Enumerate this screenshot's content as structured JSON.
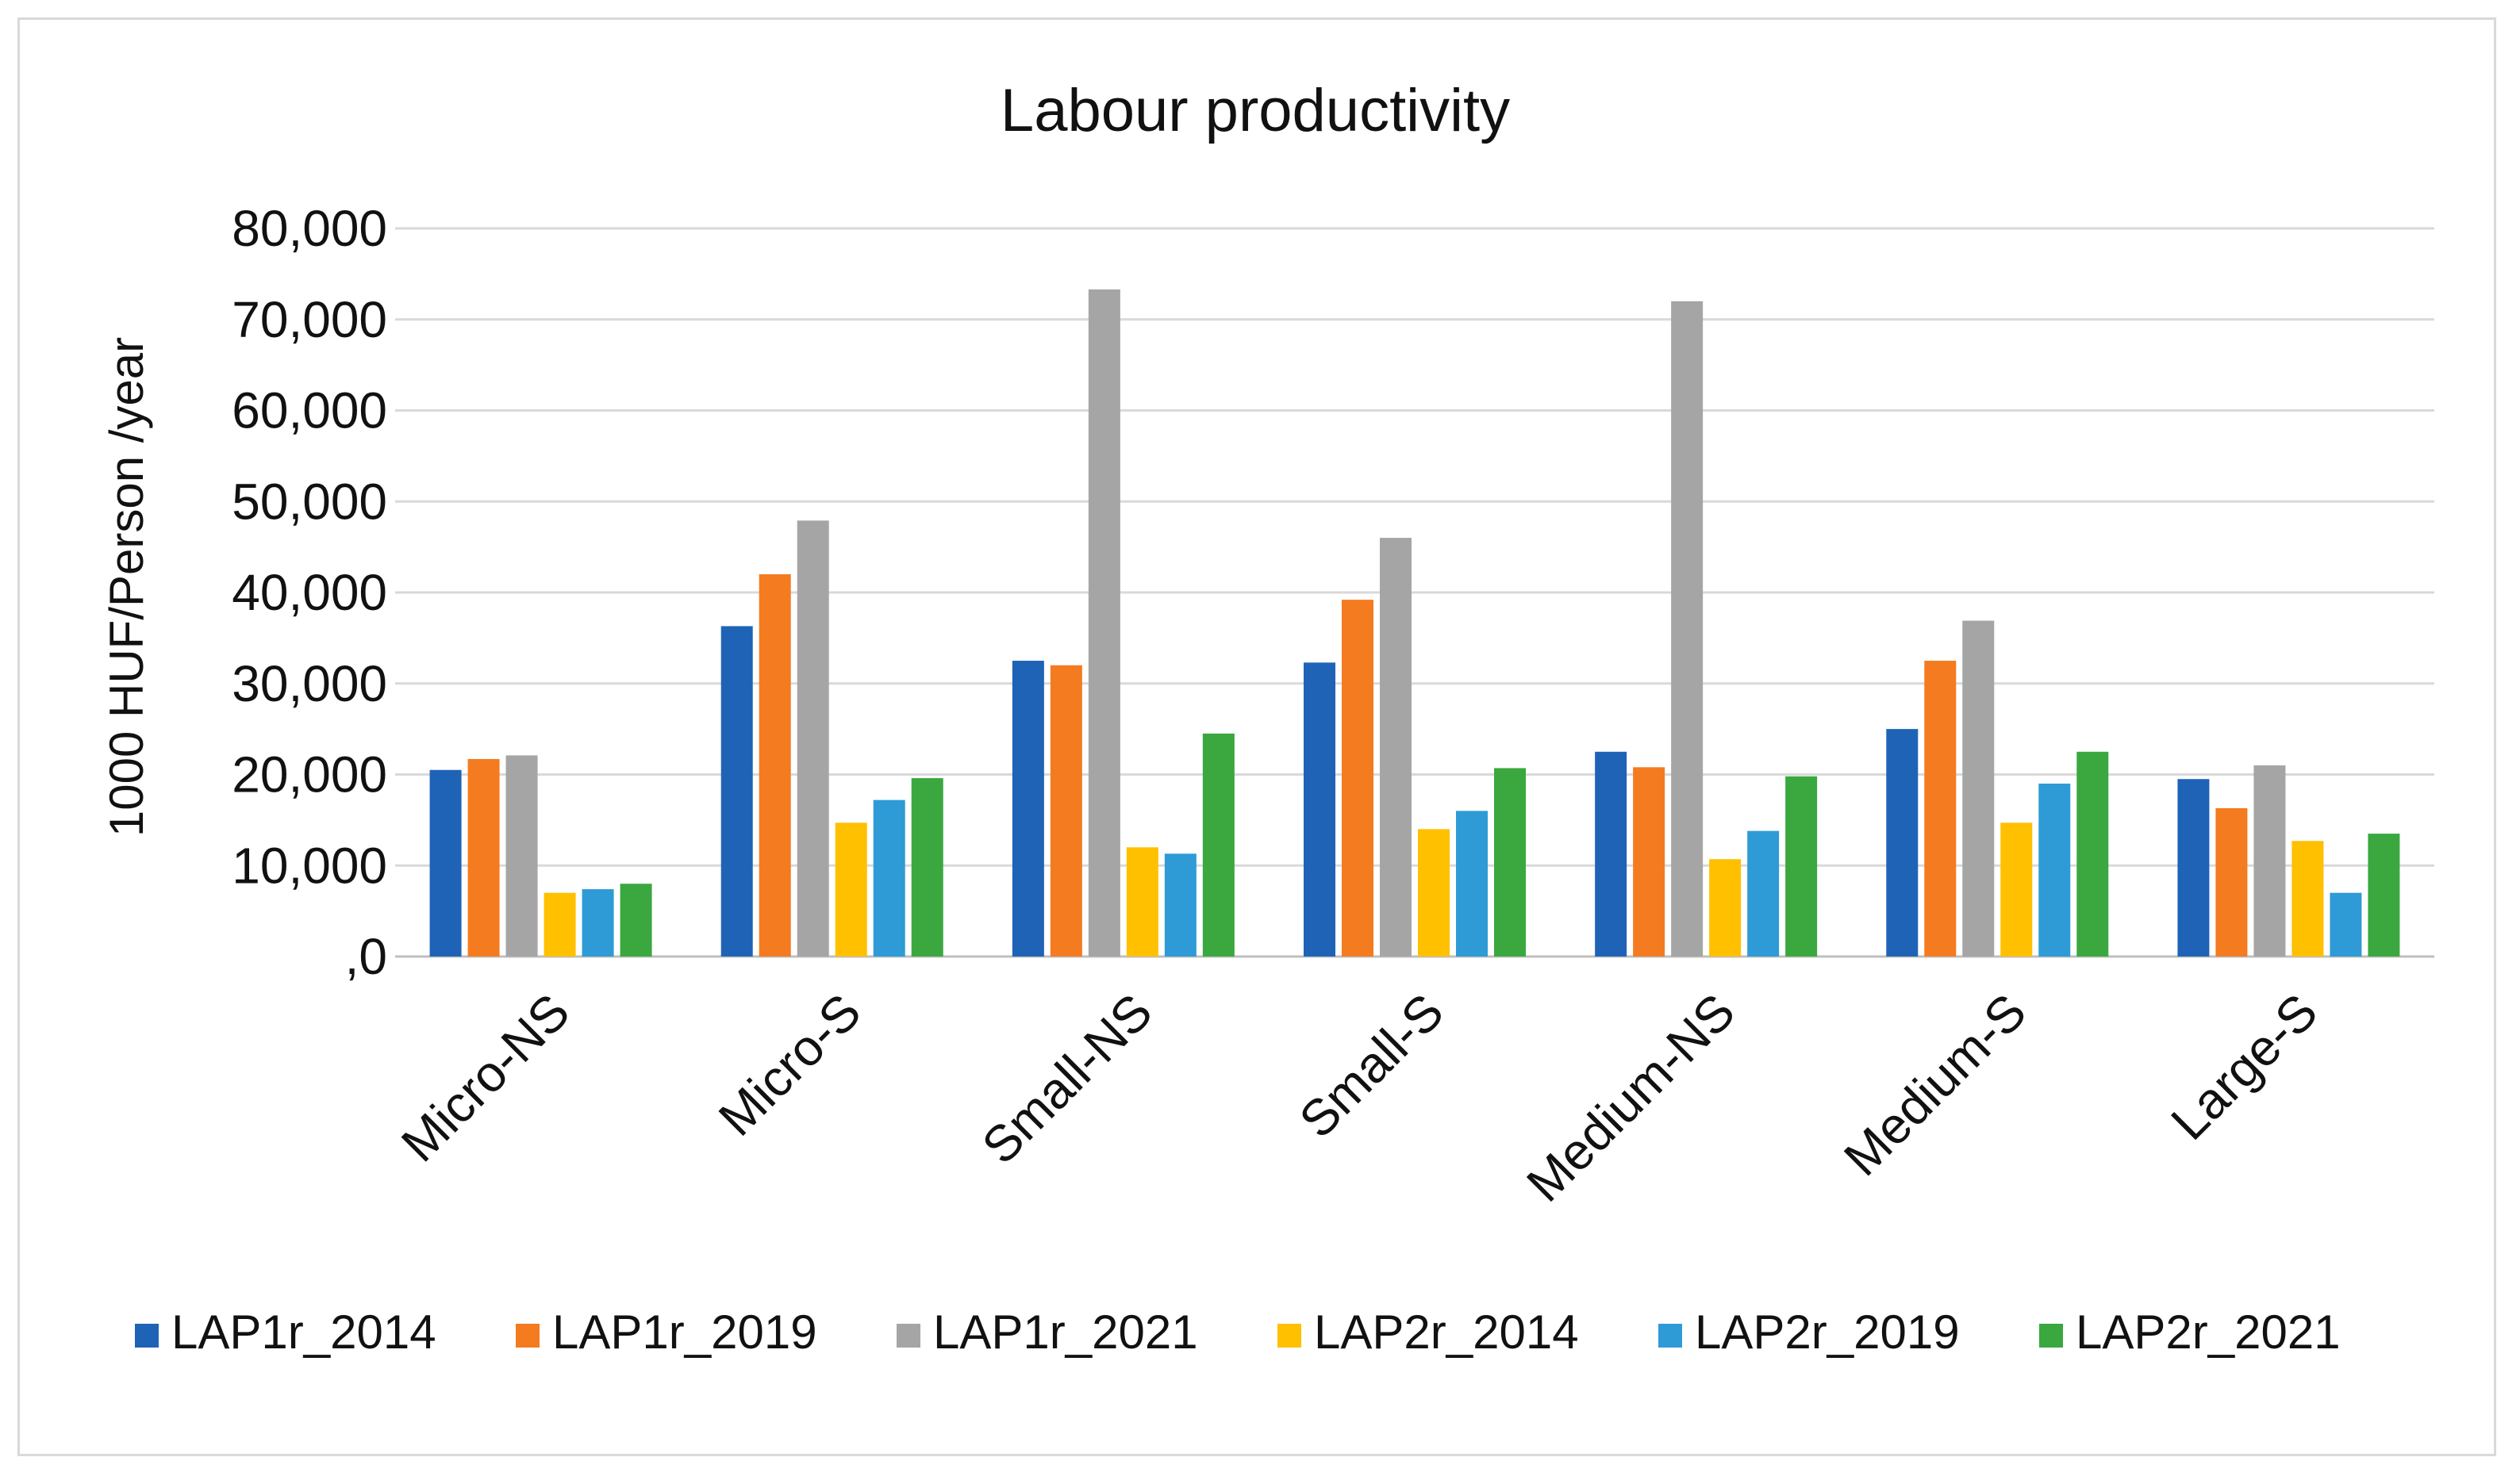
{
  "chart_data": {
    "type": "bar",
    "title": "Labour productivity",
    "xlabel": "",
    "ylabel": "1000 HUF/Person /year",
    "ylim": [
      0,
      80000
    ],
    "yticks": [
      0,
      10000,
      20000,
      30000,
      40000,
      50000,
      60000,
      70000,
      80000
    ],
    "ytick_labels": [
      ",0",
      "10,000",
      "20,000",
      "30,000",
      "40,000",
      "50,000",
      "60,000",
      "70,000",
      "80,000"
    ],
    "grid": true,
    "legend_position": "bottom",
    "categories": [
      "Micro-NS",
      "Micro-S",
      "Small-NS",
      "Small-S",
      "Medium-NS",
      "Medium-S",
      "Large-S"
    ],
    "series": [
      {
        "name": "LAP1r_2014",
        "color": "#1f63b7",
        "values": [
          20500,
          36300,
          32500,
          32300,
          22500,
          25000,
          19500
        ]
      },
      {
        "name": "LAP1r_2019",
        "color": "#f47b20",
        "values": [
          21700,
          42000,
          32000,
          39200,
          20800,
          32500,
          16300
        ]
      },
      {
        "name": "LAP1r_2021",
        "color": "#a5a5a5",
        "values": [
          22100,
          47900,
          73300,
          46000,
          72000,
          36900,
          21000
        ]
      },
      {
        "name": "LAP2r_2014",
        "color": "#ffc000",
        "values": [
          7000,
          14700,
          12000,
          14000,
          10700,
          14700,
          12700
        ]
      },
      {
        "name": "LAP2r_2019",
        "color": "#2e9bd6",
        "values": [
          7400,
          17200,
          11300,
          16000,
          13800,
          19000,
          7000
        ]
      },
      {
        "name": "LAP2r_2021",
        "color": "#3aa83f",
        "values": [
          8000,
          19600,
          24500,
          20700,
          19800,
          22500,
          13500
        ]
      }
    ]
  }
}
